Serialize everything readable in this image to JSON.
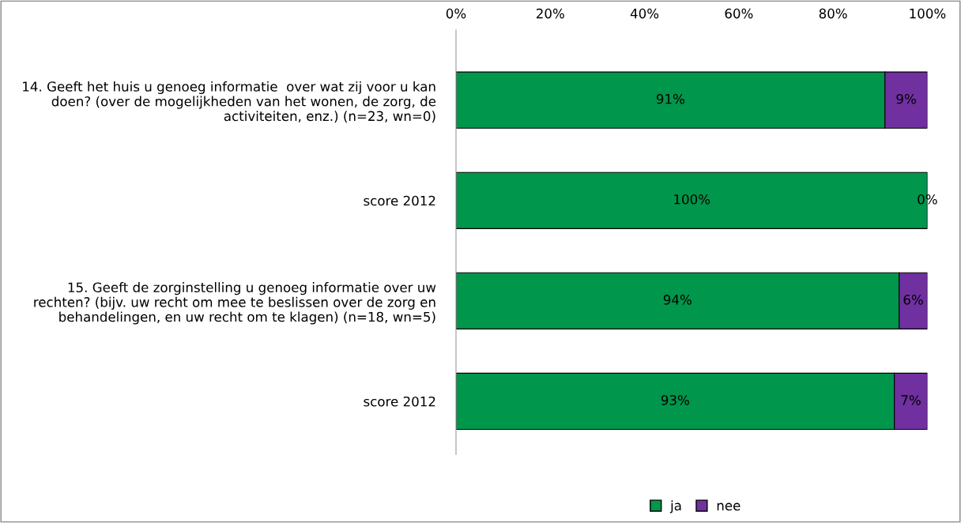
{
  "chart_data": {
    "type": "bar",
    "orientation": "horizontal",
    "stacked": true,
    "categories": [
      "14. Geeft het huis u genoeg informatie  over wat zij voor u kan\ndoen? (over de mogelijkheden van het wonen, de zorg, de\nactiviteiten, enz.) (n=23, wn=0)",
      "score 2012",
      "15. Geeft de zorginstelling u genoeg informatie over uw\nrechten? (bijv. uw recht om mee te beslissen over de zorg en\nbehandelingen, en uw recht om te klagen) (n=18, wn=5)",
      "score 2012"
    ],
    "series": [
      {
        "name": "ja",
        "color": "#00964b",
        "values": [
          91,
          100,
          94,
          93
        ],
        "value_labels": [
          "91%",
          "100%",
          "94%",
          "93%"
        ]
      },
      {
        "name": "nee",
        "color": "#7030a0",
        "values": [
          9,
          0,
          6,
          7
        ],
        "value_labels": [
          "9%",
          "0%",
          "6%",
          "7%"
        ]
      }
    ],
    "xlim": [
      0,
      100
    ],
    "xticks": [
      {
        "value": 0,
        "label": "0%"
      },
      {
        "value": 20,
        "label": "20%"
      },
      {
        "value": 40,
        "label": "40%"
      },
      {
        "value": 60,
        "label": "60%"
      },
      {
        "value": 80,
        "label": "80%"
      },
      {
        "value": 100,
        "label": "100%"
      }
    ],
    "grid": false,
    "legend": "bottom",
    "marker": "square"
  }
}
